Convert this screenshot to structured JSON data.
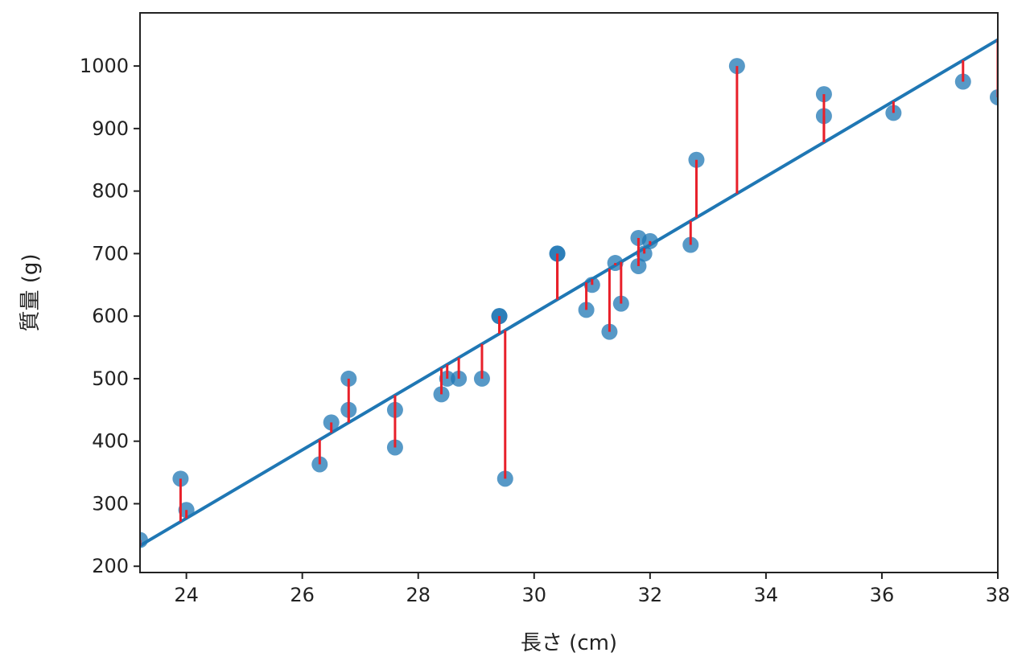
{
  "chart_data": {
    "type": "scatter",
    "title": "",
    "xlabel": "長さ (cm)",
    "ylabel": "質量 (g)",
    "xlim": [
      23.2,
      38.0
    ],
    "ylim": [
      190,
      1085
    ],
    "xticks": [
      24,
      26,
      28,
      30,
      32,
      34,
      36,
      38
    ],
    "yticks": [
      200,
      300,
      400,
      500,
      600,
      700,
      800,
      900,
      1000
    ],
    "grid": false,
    "legend": "none",
    "colors": {
      "points": "#1f77b4",
      "fit_line": "#1f77b4",
      "residuals": "#e8202a",
      "frame": "#222222"
    },
    "points": [
      {
        "x": 23.2,
        "y": 242
      },
      {
        "x": 23.9,
        "y": 340
      },
      {
        "x": 24.0,
        "y": 290
      },
      {
        "x": 26.3,
        "y": 363
      },
      {
        "x": 26.5,
        "y": 430
      },
      {
        "x": 26.8,
        "y": 450
      },
      {
        "x": 26.8,
        "y": 500
      },
      {
        "x": 27.6,
        "y": 390
      },
      {
        "x": 27.6,
        "y": 450
      },
      {
        "x": 28.4,
        "y": 475
      },
      {
        "x": 28.5,
        "y": 500
      },
      {
        "x": 28.7,
        "y": 500
      },
      {
        "x": 29.1,
        "y": 500
      },
      {
        "x": 29.4,
        "y": 600
      },
      {
        "x": 29.4,
        "y": 600
      },
      {
        "x": 29.5,
        "y": 340
      },
      {
        "x": 30.4,
        "y": 700
      },
      {
        "x": 30.4,
        "y": 700
      },
      {
        "x": 30.9,
        "y": 610
      },
      {
        "x": 31.0,
        "y": 650
      },
      {
        "x": 31.3,
        "y": 575
      },
      {
        "x": 31.4,
        "y": 685
      },
      {
        "x": 31.5,
        "y": 620
      },
      {
        "x": 31.8,
        "y": 680
      },
      {
        "x": 31.8,
        "y": 725
      },
      {
        "x": 31.9,
        "y": 700
      },
      {
        "x": 32.0,
        "y": 720
      },
      {
        "x": 32.7,
        "y": 714
      },
      {
        "x": 32.8,
        "y": 850
      },
      {
        "x": 33.5,
        "y": 1000
      },
      {
        "x": 35.0,
        "y": 920
      },
      {
        "x": 35.0,
        "y": 955
      },
      {
        "x": 36.2,
        "y": 925
      },
      {
        "x": 37.4,
        "y": 975
      },
      {
        "x": 38.0,
        "y": 950
      }
    ],
    "fit_line": {
      "x": [
        23.2,
        38.0
      ],
      "y": [
        233,
        1042
      ]
    }
  }
}
